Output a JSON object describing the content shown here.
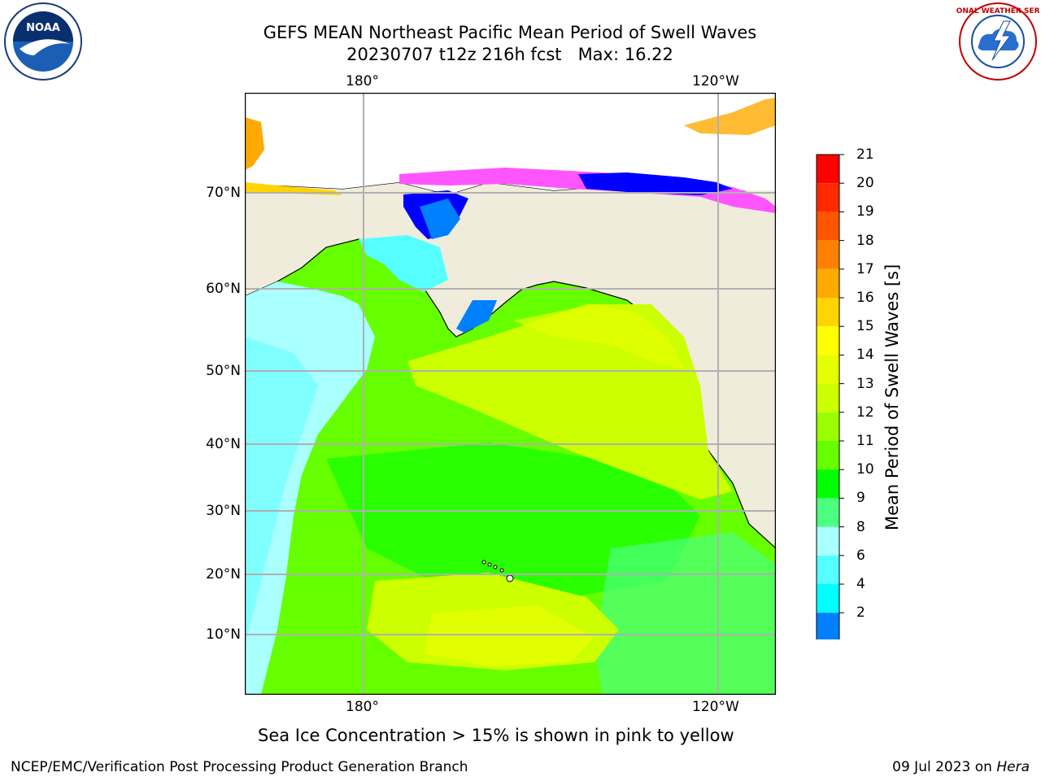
{
  "header": {
    "title_line1": "GEFS MEAN Northeast Pacific Mean Period of Swell Waves",
    "title_line2": "20230707 t12z 216h fcst   Max: 16.22"
  },
  "logos": {
    "left": {
      "name": "noaa-logo",
      "text": "NOAA"
    },
    "right": {
      "name": "nws-logo",
      "text": "NATIONAL WEATHER SERVICE"
    }
  },
  "map": {
    "lon_labels_top": [
      "180°",
      "120°W"
    ],
    "lon_labels_bottom": [
      "180°",
      "120°W"
    ],
    "lat_labels": [
      "70°N",
      "60°N",
      "50°N",
      "40°N",
      "30°N",
      "20°N",
      "10°N"
    ],
    "land_color": "#efecdc",
    "grid_color": "#b0b0b0"
  },
  "colorbar": {
    "title": "Mean Period of Swell Waves [s]",
    "tick_labels": [
      "21",
      "20",
      "19",
      "18",
      "17",
      "16",
      "15",
      "14",
      "13",
      "12",
      "11",
      "10",
      "9",
      "8",
      "6",
      "4",
      "2"
    ],
    "colors": [
      "#ff0000",
      "#ff2a00",
      "#ff5500",
      "#ff8000",
      "#ffaa00",
      "#ffd400",
      "#ffff00",
      "#e6ff00",
      "#ccff00",
      "#99ff00",
      "#66ff00",
      "#00ff00",
      "#4dff80",
      "#aaffff",
      "#55ffff",
      "#00ffff",
      "#007fff"
    ],
    "underflow_color": "#0000ff"
  },
  "caption": "Sea Ice Concentration > 15% is shown in pink to yellow",
  "footer": {
    "left": "NCEP/EMC/Verification Post Processing Product Generation Branch",
    "right_date": "09 Jul 2023 on ",
    "right_host": "Hera"
  }
}
